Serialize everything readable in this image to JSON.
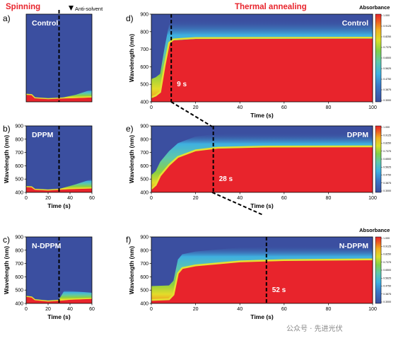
{
  "headers": {
    "left": "Spinning",
    "right": "Thermal annealing",
    "antisolvent": "Anti-solvent"
  },
  "colorbar_title": "Absorbance",
  "colorbar_ticks": [
    "1.000",
    "0.9125",
    "0.8250",
    "0.7375",
    "0.6500",
    "0.5625",
    "0.4750",
    "0.3875",
    "0.3000"
  ],
  "watermark": "公众号 · 先进光伏",
  "colors": {
    "header_red": "#e8242c",
    "background_blue": "#3b4fa0",
    "dashed_line": "#000000"
  },
  "chart_data": [
    {
      "id": "a",
      "panel_label": "a)",
      "name": "Control",
      "type": "heatmap",
      "x_ticks": [],
      "y_ticks": [],
      "xlabel": "",
      "ylabel": "",
      "xlim": [
        0,
        60
      ],
      "ylim": [
        400,
        900
      ],
      "antisolvent_time_s": 30
    },
    {
      "id": "b",
      "panel_label": "b)",
      "name": "DPPM",
      "type": "heatmap",
      "x_ticks": [
        "0",
        "20",
        "40",
        "60"
      ],
      "y_ticks": [
        "400",
        "500",
        "600",
        "700",
        "800",
        "900"
      ],
      "xlabel": "Time (s)",
      "ylabel": "Wavelength (nm)",
      "xlim": [
        0,
        60
      ],
      "ylim": [
        400,
        900
      ],
      "antisolvent_time_s": 30
    },
    {
      "id": "c",
      "panel_label": "c)",
      "name": "N-DPPM",
      "type": "heatmap",
      "x_ticks": [
        "0",
        "20",
        "40",
        "60"
      ],
      "y_ticks": [
        "400",
        "500",
        "600",
        "700",
        "800",
        "900"
      ],
      "xlabel": "Time (s)",
      "ylabel": "Wavelength (nm)",
      "xlim": [
        0,
        60
      ],
      "ylim": [
        400,
        900
      ],
      "antisolvent_time_s": 30
    },
    {
      "id": "d",
      "panel_label": "d)",
      "name": "Control",
      "type": "heatmap",
      "x_ticks": [
        "0",
        "20",
        "40",
        "60",
        "80",
        "100"
      ],
      "y_ticks": [
        "400",
        "500",
        "600",
        "700",
        "800",
        "900"
      ],
      "xlabel": "Time (s)",
      "ylabel": "Wavelength (nm)",
      "xlim": [
        0,
        100
      ],
      "ylim": [
        400,
        900
      ],
      "marker_time_s": 9,
      "annotation": "9 s",
      "band_edge_nm": 760
    },
    {
      "id": "e",
      "panel_label": "e)",
      "name": "DPPM",
      "type": "heatmap",
      "x_ticks": [
        "0",
        "20",
        "40",
        "60",
        "80",
        "100"
      ],
      "y_ticks": [
        "400",
        "500",
        "600",
        "700",
        "800",
        "900"
      ],
      "xlabel": "Time (s)",
      "ylabel": "Wavelength (nm)",
      "xlim": [
        0,
        100
      ],
      "ylim": [
        400,
        900
      ],
      "marker_time_s": 28,
      "annotation": "28 s",
      "band_edge_nm": 740
    },
    {
      "id": "f",
      "panel_label": "f)",
      "name": "N-DPPM",
      "type": "heatmap",
      "x_ticks": [
        "0",
        "20",
        "40",
        "60",
        "80",
        "100"
      ],
      "y_ticks": [
        "400",
        "500",
        "600",
        "700",
        "800",
        "900"
      ],
      "xlabel": "Time (s)",
      "ylabel": "Wavelength (nm)",
      "xlim": [
        0,
        100
      ],
      "ylim": [
        400,
        900
      ],
      "marker_time_s": 52,
      "annotation": "52 s",
      "band_edge_nm": 725
    }
  ]
}
